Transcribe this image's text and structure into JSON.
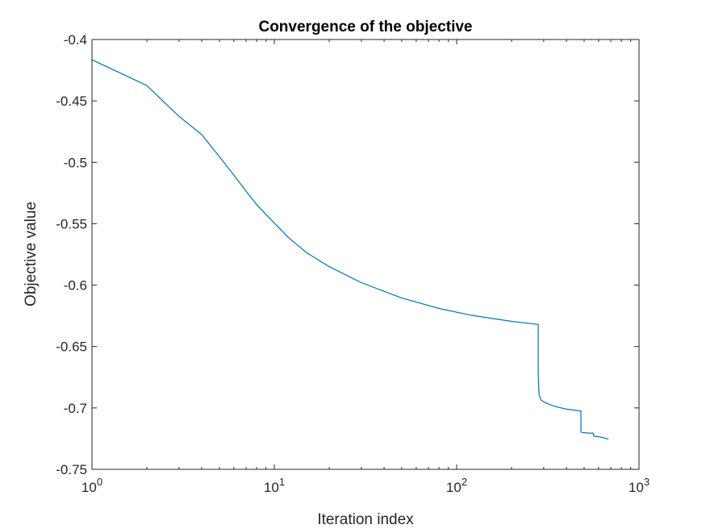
{
  "chart_data": {
    "type": "line",
    "title": "Convergence of the objective",
    "xlabel": "Iteration index",
    "ylabel": "Objective value",
    "xscale": "log",
    "xlim": [
      1,
      1000
    ],
    "ylim": [
      -0.75,
      -0.4
    ],
    "grid": false,
    "box": true,
    "line_color": "#0072BD",
    "x_ticks": [
      {
        "base": "10",
        "exp": "0"
      },
      {
        "base": "10",
        "exp": "1"
      },
      {
        "base": "10",
        "exp": "2"
      },
      {
        "base": "10",
        "exp": "3"
      }
    ],
    "y_ticks": [
      "-0.4",
      "-0.45",
      "-0.5",
      "-0.55",
      "-0.6",
      "-0.65",
      "-0.7",
      "-0.75"
    ],
    "series": [
      {
        "x": [
          1,
          2,
          3,
          4,
          5,
          6,
          7,
          8,
          10,
          12,
          15,
          20,
          30,
          50,
          80,
          120,
          200,
          280,
          280,
          283,
          286,
          290,
          300,
          320,
          350,
          400,
          450,
          480,
          480,
          485,
          530,
          560,
          565,
          600,
          650,
          680
        ],
        "y": [
          -0.4165,
          -0.4375,
          -0.4625,
          -0.4775,
          -0.4955,
          -0.5105,
          -0.5235,
          -0.5345,
          -0.5495,
          -0.5615,
          -0.5735,
          -0.585,
          -0.598,
          -0.6105,
          -0.619,
          -0.6245,
          -0.6295,
          -0.632,
          -0.6725,
          -0.6895,
          -0.6905,
          -0.6935,
          -0.695,
          -0.697,
          -0.699,
          -0.701,
          -0.702,
          -0.7025,
          -0.7195,
          -0.72,
          -0.7205,
          -0.7205,
          -0.723,
          -0.7235,
          -0.7245,
          -0.7255
        ]
      }
    ]
  }
}
